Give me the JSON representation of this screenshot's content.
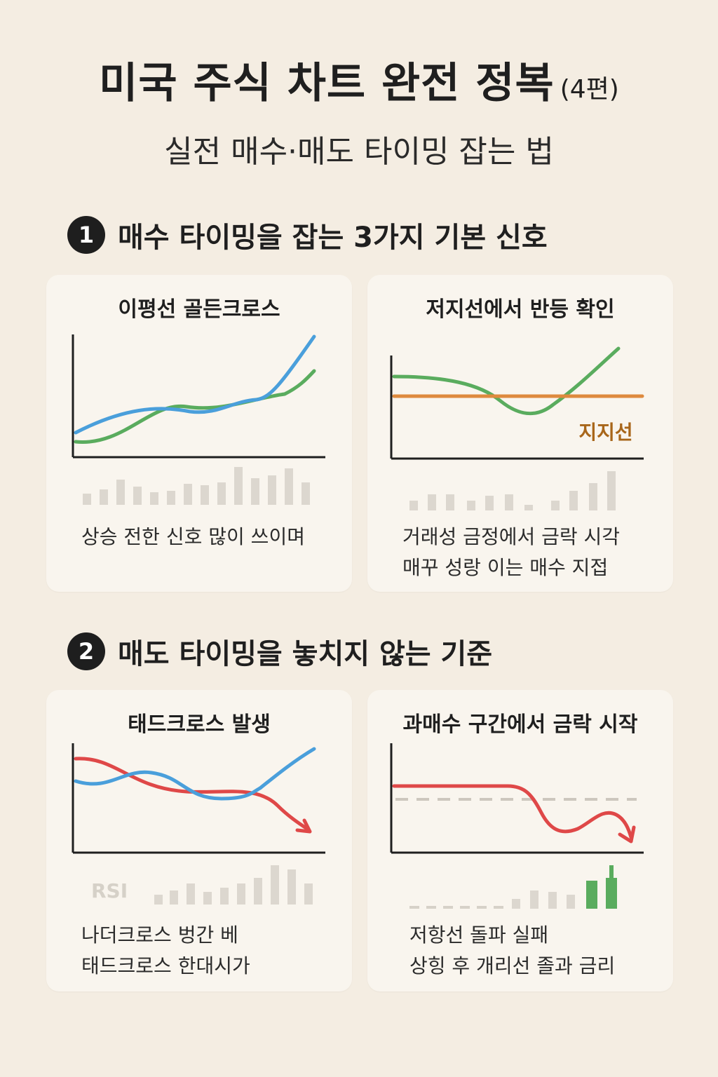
{
  "header": {
    "title": "미국 주식 차트 완전 정복",
    "episode": "(4편)",
    "subtitle": "실전 매수·매도 타이밍 잡는 법"
  },
  "sections": [
    {
      "number": "1",
      "title": "매수 타이밍을 잡는 3가지 기본 신호",
      "cards": [
        {
          "title": "이평선 골든크로스",
          "lines": [
            "상승 전한 신호 많이 쓰이며"
          ]
        },
        {
          "title": "저지선에서 반등 확인",
          "support_label": "지지선",
          "lines": [
            "거래성 금정에서 금락 시각",
            "매꾸 성랑 이는 매수 지접"
          ]
        }
      ]
    },
    {
      "number": "2",
      "title": "매도 타이밍을 놓치지 않는 기준",
      "cards": [
        {
          "title": "태드크로스 발생",
          "rsi_label": "RSI",
          "lines": [
            "나더크로스 벙간 베",
            "태드크로스 한대시가"
          ]
        },
        {
          "title": "과매수 구간에서 금락 시작",
          "lines": [
            "저항선 돌파 실패",
            "상힝 후 개리선 졸과 금리"
          ]
        }
      ]
    }
  ],
  "colors": {
    "background": "#f4ede2",
    "card": "#f9f5ee",
    "blue": "#4a9fdb",
    "green": "#5aac5e",
    "red": "#df4848",
    "orange": "#de8a3e",
    "gray_bar": "#dcd7cf",
    "support_text": "#a8661a"
  }
}
